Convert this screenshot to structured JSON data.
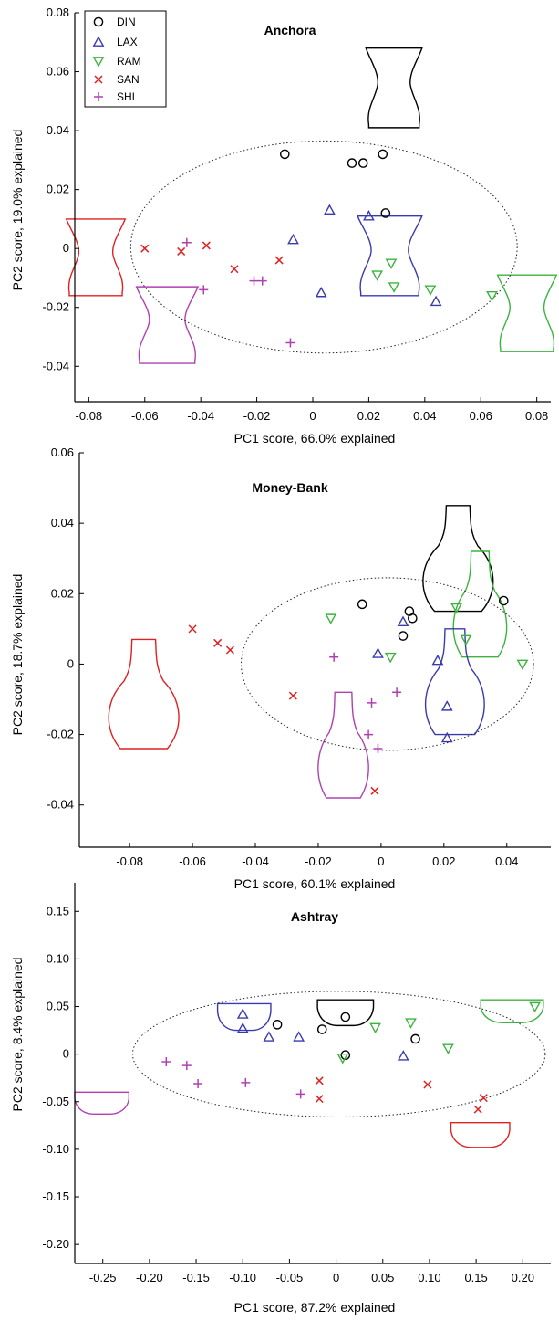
{
  "legend": [
    {
      "key": "DIN",
      "label": "DIN",
      "marker": "circle",
      "color": "#000000"
    },
    {
      "key": "LAX",
      "label": "LAX",
      "marker": "triangle-up",
      "color": "#3a3ab0"
    },
    {
      "key": "RAM",
      "label": "RAM",
      "marker": "triangle-down",
      "color": "#3cb33c"
    },
    {
      "key": "SAN",
      "label": "SAN",
      "marker": "x",
      "color": "#e02020"
    },
    {
      "key": "SHI",
      "label": "SHI",
      "marker": "plus",
      "color": "#b040b0"
    }
  ],
  "chart_data": [
    {
      "type": "scatter",
      "title": "Anchora",
      "xlabel": "PC1 score, 66.0% explained",
      "ylabel": "PC2 score, 19.0% explained",
      "xlim": [
        -0.085,
        0.085
      ],
      "ylim": [
        -0.052,
        0.08
      ],
      "xticks": [
        -0.08,
        -0.06,
        -0.04,
        -0.02,
        0,
        0.02,
        0.04,
        0.06,
        0.08
      ],
      "xtick_labels": [
        "-0.08",
        "-0.06",
        "-0.04",
        "-0.02",
        "0",
        "0.02",
        "0.04",
        "0.06",
        "0.08"
      ],
      "yticks": [
        -0.04,
        -0.02,
        0,
        0.02,
        0.04,
        0.06,
        0.08
      ],
      "ytick_labels": [
        "-0.04",
        "-0.02",
        "0",
        "0.02",
        "0.04",
        "0.06",
        "0.08"
      ],
      "ellipse": {
        "cx": 0.004,
        "cy": 0.0005,
        "rx": 0.069,
        "ry": 0.036
      },
      "series": [
        {
          "key": "DIN",
          "points": [
            [
              -0.01,
              0.032
            ],
            [
              0.014,
              0.029
            ],
            [
              0.018,
              0.029
            ],
            [
              0.025,
              0.032
            ],
            [
              0.026,
              0.012
            ]
          ]
        },
        {
          "key": "LAX",
          "points": [
            [
              -0.007,
              0.003
            ],
            [
              0.006,
              0.013
            ],
            [
              0.02,
              0.011
            ],
            [
              0.003,
              -0.015
            ],
            [
              0.044,
              -0.018
            ]
          ]
        },
        {
          "key": "RAM",
          "points": [
            [
              0.028,
              -0.005
            ],
            [
              0.023,
              -0.009
            ],
            [
              0.029,
              -0.013
            ],
            [
              0.042,
              -0.014
            ],
            [
              0.064,
              -0.016
            ]
          ]
        },
        {
          "key": "SAN",
          "points": [
            [
              -0.06,
              0.0
            ],
            [
              -0.047,
              -0.001
            ],
            [
              -0.038,
              0.001
            ],
            [
              -0.028,
              -0.007
            ],
            [
              -0.012,
              -0.004
            ]
          ]
        },
        {
          "key": "SHI",
          "points": [
            [
              -0.045,
              0.002
            ],
            [
              -0.039,
              -0.014
            ],
            [
              -0.021,
              -0.011
            ],
            [
              -0.018,
              -0.011
            ],
            [
              -0.008,
              -0.032
            ]
          ]
        }
      ],
      "vessels": [
        {
          "key": "DIN",
          "shape": "anchora",
          "box": [
            0.019,
            0.041,
            0.039,
            0.068
          ]
        },
        {
          "key": "LAX",
          "shape": "anchora",
          "box": [
            0.016,
            -0.016,
            0.039,
            0.011
          ]
        },
        {
          "key": "RAM",
          "shape": "anchora",
          "box": [
            0.066,
            -0.035,
            0.087,
            -0.009
          ]
        },
        {
          "key": "SAN",
          "shape": "anchora",
          "box": [
            -0.088,
            -0.016,
            -0.067,
            0.01
          ]
        },
        {
          "key": "SHI",
          "shape": "anchora",
          "box": [
            -0.063,
            -0.039,
            -0.041,
            -0.013
          ]
        }
      ]
    },
    {
      "type": "scatter",
      "title": "Money-Bank",
      "xlabel": "PC1 score, 60.1% explained",
      "ylabel": "PC2 score, 18.7% explained",
      "xlim": [
        -0.096,
        0.054
      ],
      "ylim": [
        -0.052,
        0.06
      ],
      "xticks": [
        -0.08,
        -0.06,
        -0.04,
        -0.02,
        0,
        0.02,
        0.04
      ],
      "xtick_labels": [
        "-0.08",
        "-0.06",
        "-0.04",
        "-0.02",
        "0",
        "0.02",
        "0.04"
      ],
      "yticks": [
        -0.04,
        -0.02,
        0,
        0.02,
        0.04,
        0.06
      ],
      "ytick_labels": [
        "-0.04",
        "-0.02",
        "0",
        "0.02",
        "0.04",
        "0.06"
      ],
      "ellipse": {
        "cx": 0.002,
        "cy": 0.0,
        "rx": 0.0465,
        "ry": 0.0245
      },
      "series": [
        {
          "key": "DIN",
          "points": [
            [
              -0.006,
              0.017
            ],
            [
              0.009,
              0.015
            ],
            [
              0.01,
              0.013
            ],
            [
              0.007,
              0.008
            ],
            [
              0.039,
              0.018
            ]
          ]
        },
        {
          "key": "LAX",
          "points": [
            [
              0.007,
              0.012
            ],
            [
              -0.001,
              0.003
            ],
            [
              0.018,
              0.001
            ],
            [
              0.021,
              -0.012
            ],
            [
              0.021,
              -0.021
            ]
          ]
        },
        {
          "key": "RAM",
          "points": [
            [
              -0.016,
              0.013
            ],
            [
              0.003,
              0.002
            ],
            [
              0.024,
              0.016
            ],
            [
              0.027,
              0.007
            ],
            [
              0.045,
              0.0
            ]
          ]
        },
        {
          "key": "SAN",
          "points": [
            [
              -0.06,
              0.01
            ],
            [
              -0.052,
              0.006
            ],
            [
              -0.048,
              0.004
            ],
            [
              -0.028,
              -0.009
            ],
            [
              -0.002,
              -0.036
            ]
          ]
        },
        {
          "key": "SHI",
          "points": [
            [
              -0.015,
              0.002
            ],
            [
              -0.003,
              -0.011
            ],
            [
              -0.004,
              -0.02
            ],
            [
              0.005,
              -0.008
            ],
            [
              -0.001,
              -0.024
            ]
          ]
        }
      ],
      "vessels": [
        {
          "key": "DIN",
          "shape": "bank",
          "box": [
            0.012,
            0.015,
            0.037,
            0.045
          ]
        },
        {
          "key": "RAM",
          "shape": "bank",
          "box": [
            0.022,
            0.002,
            0.041,
            0.032
          ]
        },
        {
          "key": "LAX",
          "shape": "bank",
          "box": [
            0.013,
            -0.02,
            0.034,
            0.01
          ]
        },
        {
          "key": "SAN",
          "shape": "bank",
          "box": [
            -0.088,
            -0.024,
            -0.063,
            0.007
          ]
        },
        {
          "key": "SHI",
          "shape": "bank",
          "box": [
            -0.021,
            -0.038,
            -0.003,
            -0.008
          ]
        }
      ]
    },
    {
      "type": "scatter",
      "title": "Ashtray",
      "xlabel": "PC1 score, 87.2% explained",
      "ylabel": "PC2 score, 8.4% explained",
      "xlim": [
        -0.28,
        0.23
      ],
      "ylim": [
        -0.22,
        0.18
      ],
      "xticks": [
        -0.25,
        -0.2,
        -0.15,
        -0.1,
        -0.05,
        0,
        0.05,
        0.1,
        0.15,
        0.2
      ],
      "xtick_labels": [
        "-0.25",
        "-0.20",
        "-0.15",
        "-0.10",
        "-0.05",
        "0",
        "0.05",
        "0.10",
        "0.15",
        "0.20"
      ],
      "yticks": [
        -0.2,
        -0.15,
        -0.1,
        -0.05,
        0,
        0.05,
        0.1,
        0.15
      ],
      "ytick_labels": [
        "-0.20",
        "-0.15",
        "-0.10",
        "-0.05",
        "0",
        "0.05",
        "0.10",
        "0.15"
      ],
      "ellipse": {
        "cx": 0.003,
        "cy": 0.0,
        "rx": 0.221,
        "ry": 0.066
      },
      "series": [
        {
          "key": "DIN",
          "points": [
            [
              -0.063,
              0.031
            ],
            [
              -0.015,
              0.026
            ],
            [
              0.01,
              0.039
            ],
            [
              0.085,
              0.016
            ],
            [
              0.01,
              -0.001
            ]
          ]
        },
        {
          "key": "LAX",
          "points": [
            [
              -0.1,
              0.042
            ],
            [
              -0.1,
              0.027
            ],
            [
              -0.072,
              0.018
            ],
            [
              -0.04,
              0.018
            ],
            [
              0.072,
              -0.002
            ]
          ]
        },
        {
          "key": "RAM",
          "points": [
            [
              0.007,
              -0.004
            ],
            [
              0.042,
              0.028
            ],
            [
              0.08,
              0.033
            ],
            [
              0.12,
              0.006
            ],
            [
              0.213,
              0.05
            ]
          ]
        },
        {
          "key": "SAN",
          "points": [
            [
              -0.018,
              -0.028
            ],
            [
              -0.018,
              -0.047
            ],
            [
              0.098,
              -0.032
            ],
            [
              0.158,
              -0.046
            ],
            [
              0.152,
              -0.058
            ]
          ]
        },
        {
          "key": "SHI",
          "points": [
            [
              -0.182,
              -0.008
            ],
            [
              -0.16,
              -0.012
            ],
            [
              -0.148,
              -0.031
            ],
            [
              -0.097,
              -0.03
            ],
            [
              -0.038,
              -0.042
            ]
          ]
        }
      ],
      "vessels": [
        {
          "key": "DIN",
          "shape": "tray",
          "box": [
            -0.02,
            0.03,
            0.04,
            0.057
          ]
        },
        {
          "key": "LAX",
          "shape": "tray",
          "box": [
            -0.127,
            0.025,
            -0.07,
            0.053
          ]
        },
        {
          "key": "RAM",
          "shape": "tray",
          "box": [
            0.155,
            0.033,
            0.222,
            0.057
          ]
        },
        {
          "key": "SAN",
          "shape": "tray",
          "box": [
            0.123,
            -0.098,
            0.186,
            -0.072
          ]
        },
        {
          "key": "SHI",
          "shape": "tray",
          "box": [
            -0.28,
            -0.063,
            -0.222,
            -0.04
          ]
        }
      ]
    }
  ]
}
